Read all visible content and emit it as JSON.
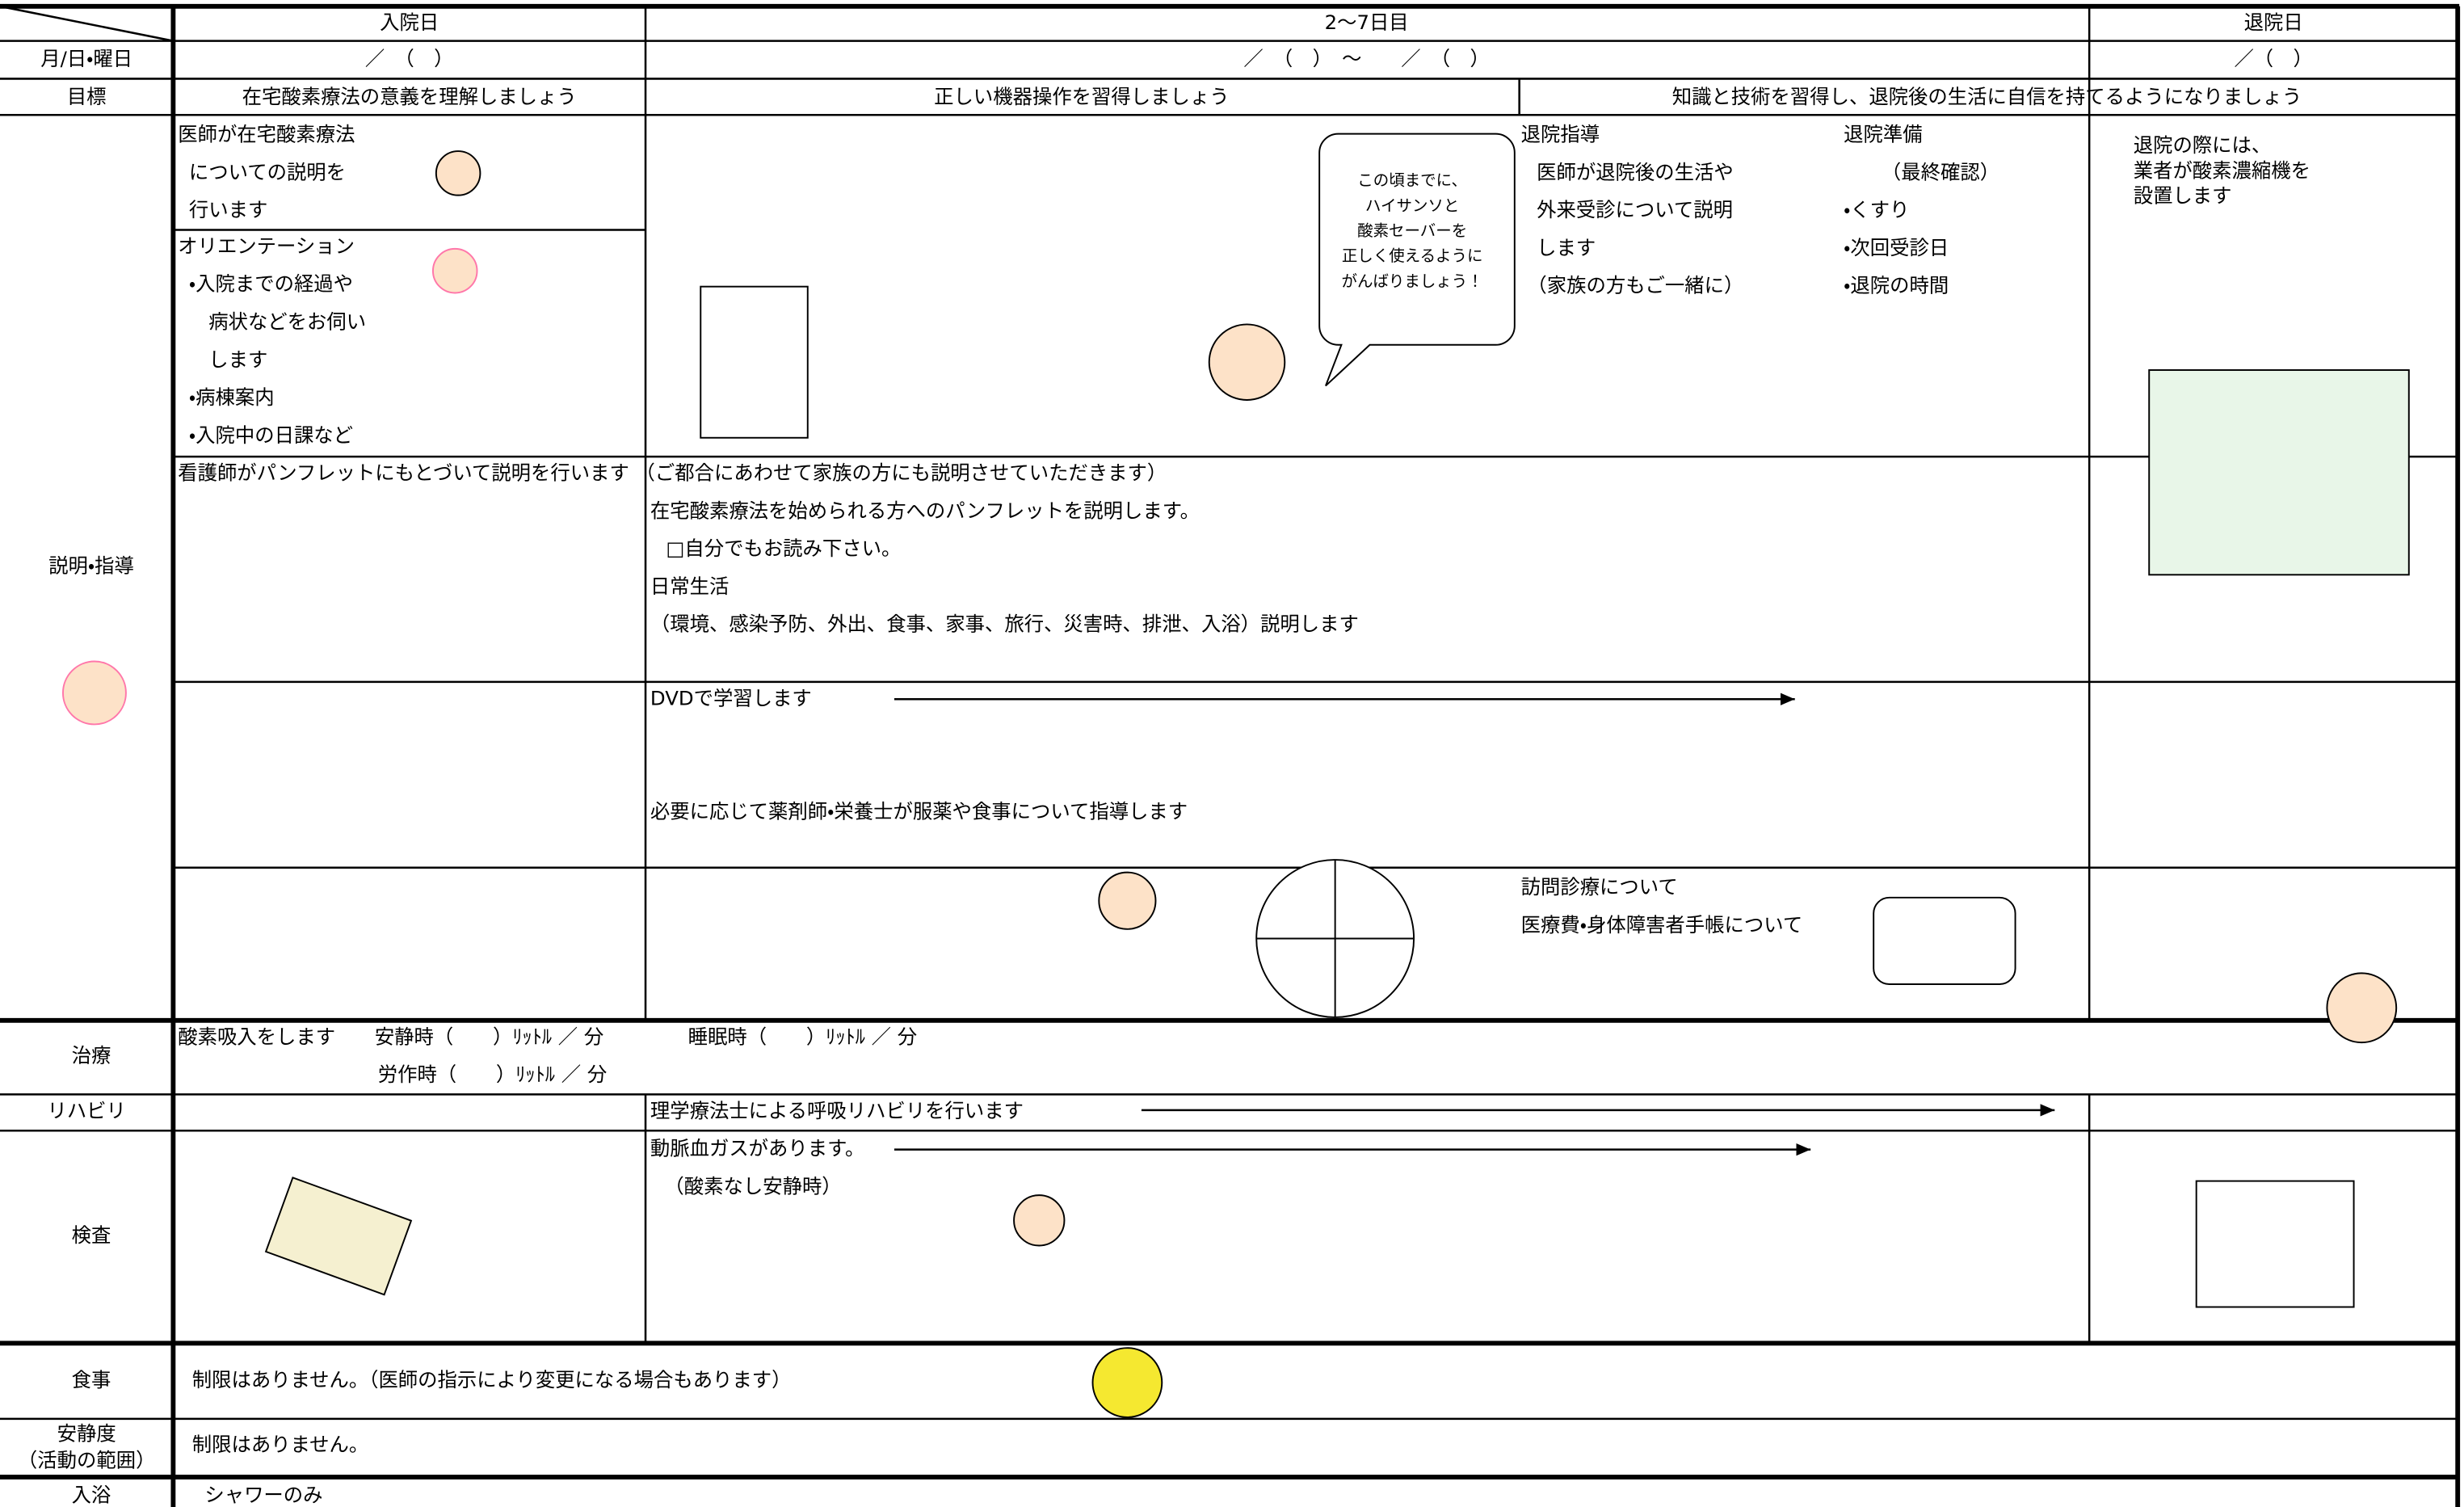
{
  "header": {
    "columns": [
      "入院日",
      "2〜7日目",
      "退院日"
    ]
  },
  "date_row": {
    "label": "月/日・曜日",
    "cells": [
      "／　（　）",
      "／　（　）　〜　　／　（　）",
      "／（　）"
    ]
  },
  "goal_row": {
    "label": "目標",
    "cells": [
      "在宅酸素療法の意義を理解しましょう",
      "正しい機器操作を習得しましょう",
      "知識と技術を習得し、退院後の生活に自信を持てるようになりましょう"
    ]
  },
  "explanation": {
    "label": "説明・指導",
    "doctor": [
      "医師が在宅酸素療法",
      "についての説明を",
      "行います"
    ],
    "orientation": [
      "オリエンテーション",
      "・入院までの経過や",
      "　病状などをお伺い",
      "　します",
      "・病棟案内",
      "・入院中の日課など"
    ],
    "bubble": [
      "この頃までに、",
      "ハイサンソと",
      "酸素セーバーを",
      "正しく使えるように",
      "がんばりましょう！"
    ],
    "discharge_guidance": [
      "退院指導",
      "医師が退院後の生活や",
      "外来受診について説明",
      "します",
      "（家族の方もご一緒に）"
    ],
    "discharge_prep": [
      "退院準備",
      "（最終確認）",
      "・くすり",
      "・次回受診日",
      "・退院の時間"
    ],
    "discharge_day": [
      "退院の際には、",
      "業者が酸素濃縮機を",
      "設置します"
    ],
    "nurse": "看護師がパンフレットにもとづいて説明を行います （ご都合にあわせて家族の方にも説明させていただきます）",
    "pamphlet": [
      "在宅酸素療法を始められる方へのパンフレットを説明します。",
      "□自分でもお読み下さい。",
      "日常生活",
      "（環境、感染予防、外出、食事、家事、旅行、災害時、排泄、入浴）説明します"
    ],
    "dvd": "DVDで学習します",
    "pharmacist": "必要に応じて薬剤師・栄養士が服薬や食事について指導します",
    "home_care": [
      "訪問診療について",
      "医療費・身体障害者手帳について"
    ]
  },
  "treatment": {
    "label": "治療",
    "lines": [
      "酸素吸入をします　　安静時（　　）ﾘｯﾄﾙ ／ 分",
      "睡眠時（　　）ﾘｯﾄﾙ ／ 分",
      "労作時（　　）ﾘｯﾄﾙ ／ 分"
    ]
  },
  "rehab": {
    "label": "リハビリ",
    "text": "理学療法士による呼吸リハビリを行います"
  },
  "exam": {
    "label": "検査",
    "lines": [
      "動脈血ガスがあります。",
      "（酸素なし安静時）"
    ]
  },
  "meal": {
    "label": "食事",
    "text": "制限はありません。（医師の指示により変更になる場合もあります）"
  },
  "rest": {
    "label": [
      "安静度",
      "（活動の範囲）"
    ],
    "text": "制限はありません。"
  },
  "bath": {
    "label": "入浴",
    "text": "シャワーのみ"
  }
}
